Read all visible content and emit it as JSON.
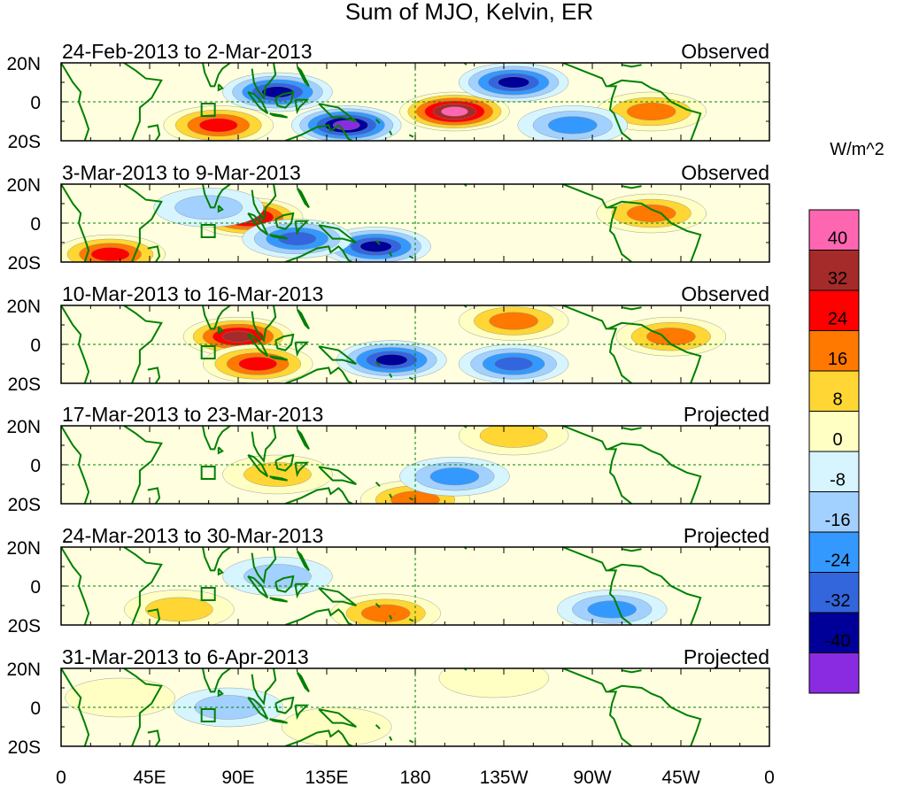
{
  "title": "Sum of MJO, Kelvin, ER",
  "panels": [
    {
      "date_range": "24-Feb-2013 to 2-Mar-2013",
      "status": "Observed",
      "anomalies": [
        {
          "lon": 110,
          "lat": 5,
          "value": -40
        },
        {
          "lon": 145,
          "lat": -12,
          "value": -44
        },
        {
          "lon": 200,
          "lat": -5,
          "value": 44
        },
        {
          "lon": 230,
          "lat": 10,
          "value": -40
        },
        {
          "lon": 80,
          "lat": -12,
          "value": 28
        },
        {
          "lon": 300,
          "lat": -5,
          "value": 18
        },
        {
          "lon": 260,
          "lat": -12,
          "value": -20
        }
      ]
    },
    {
      "date_range": "3-Mar-2013 to 9-Mar-2013",
      "status": "Observed",
      "anomalies": [
        {
          "lon": 95,
          "lat": 3,
          "value": 34
        },
        {
          "lon": 160,
          "lat": -12,
          "value": -40
        },
        {
          "lon": 120,
          "lat": -8,
          "value": -26
        },
        {
          "lon": 25,
          "lat": -16,
          "value": 30
        },
        {
          "lon": 75,
          "lat": 8,
          "value": -16
        },
        {
          "lon": 300,
          "lat": 5,
          "value": 18
        }
      ]
    },
    {
      "date_range": "10-Mar-2013 to 16-Mar-2013",
      "status": "Observed",
      "anomalies": [
        {
          "lon": 90,
          "lat": 4,
          "value": 34
        },
        {
          "lon": 100,
          "lat": -10,
          "value": 30
        },
        {
          "lon": 168,
          "lat": -8,
          "value": -40
        },
        {
          "lon": 230,
          "lat": 12,
          "value": 22
        },
        {
          "lon": 230,
          "lat": -10,
          "value": -30
        },
        {
          "lon": 310,
          "lat": 4,
          "value": 22
        }
      ]
    },
    {
      "date_range": "17-Mar-2013 to 23-Mar-2013",
      "status": "Projected",
      "anomalies": [
        {
          "lon": 180,
          "lat": -18,
          "value": 20
        },
        {
          "lon": 200,
          "lat": -6,
          "value": -18
        },
        {
          "lon": 110,
          "lat": -5,
          "value": 10
        },
        {
          "lon": 230,
          "lat": 15,
          "value": 10
        }
      ]
    },
    {
      "date_range": "24-Mar-2013 to 30-Mar-2013",
      "status": "Projected",
      "anomalies": [
        {
          "lon": 165,
          "lat": -14,
          "value": 22
        },
        {
          "lon": 280,
          "lat": -12,
          "value": -18
        },
        {
          "lon": 110,
          "lat": 5,
          "value": -10
        },
        {
          "lon": 60,
          "lat": -12,
          "value": 10
        }
      ]
    },
    {
      "date_range": "31-Mar-2013 to 6-Apr-2013",
      "status": "Projected",
      "anomalies": [
        {
          "lon": 85,
          "lat": 0,
          "value": -14
        },
        {
          "lon": 140,
          "lat": -10,
          "value": 8
        },
        {
          "lon": 220,
          "lat": 15,
          "value": 8
        },
        {
          "lon": 30,
          "lat": 5,
          "value": 6
        }
      ]
    }
  ],
  "lat_ticks": [
    "20N",
    "0",
    "20S"
  ],
  "lon_ticks": [
    "0",
    "45E",
    "90E",
    "135E",
    "180",
    "135W",
    "90W",
    "45W",
    "0"
  ],
  "colorbar": {
    "units": "W/m^2",
    "labels": [
      "40",
      "32",
      "24",
      "16",
      "8",
      "0",
      "-8",
      "-16",
      "-24",
      "-32",
      "-40"
    ],
    "colors": [
      "#ff66b2",
      "#a52a2a",
      "#ff0000",
      "#ff7800",
      "#ffd633",
      "#ffffc4",
      "#d6f5ff",
      "#a3d1ff",
      "#3399ff",
      "#3366dd",
      "#000099",
      "#8a2be2"
    ]
  },
  "colors": {
    "coastline": "#008000",
    "dashed_lines": "#008000",
    "text": "#000000"
  }
}
